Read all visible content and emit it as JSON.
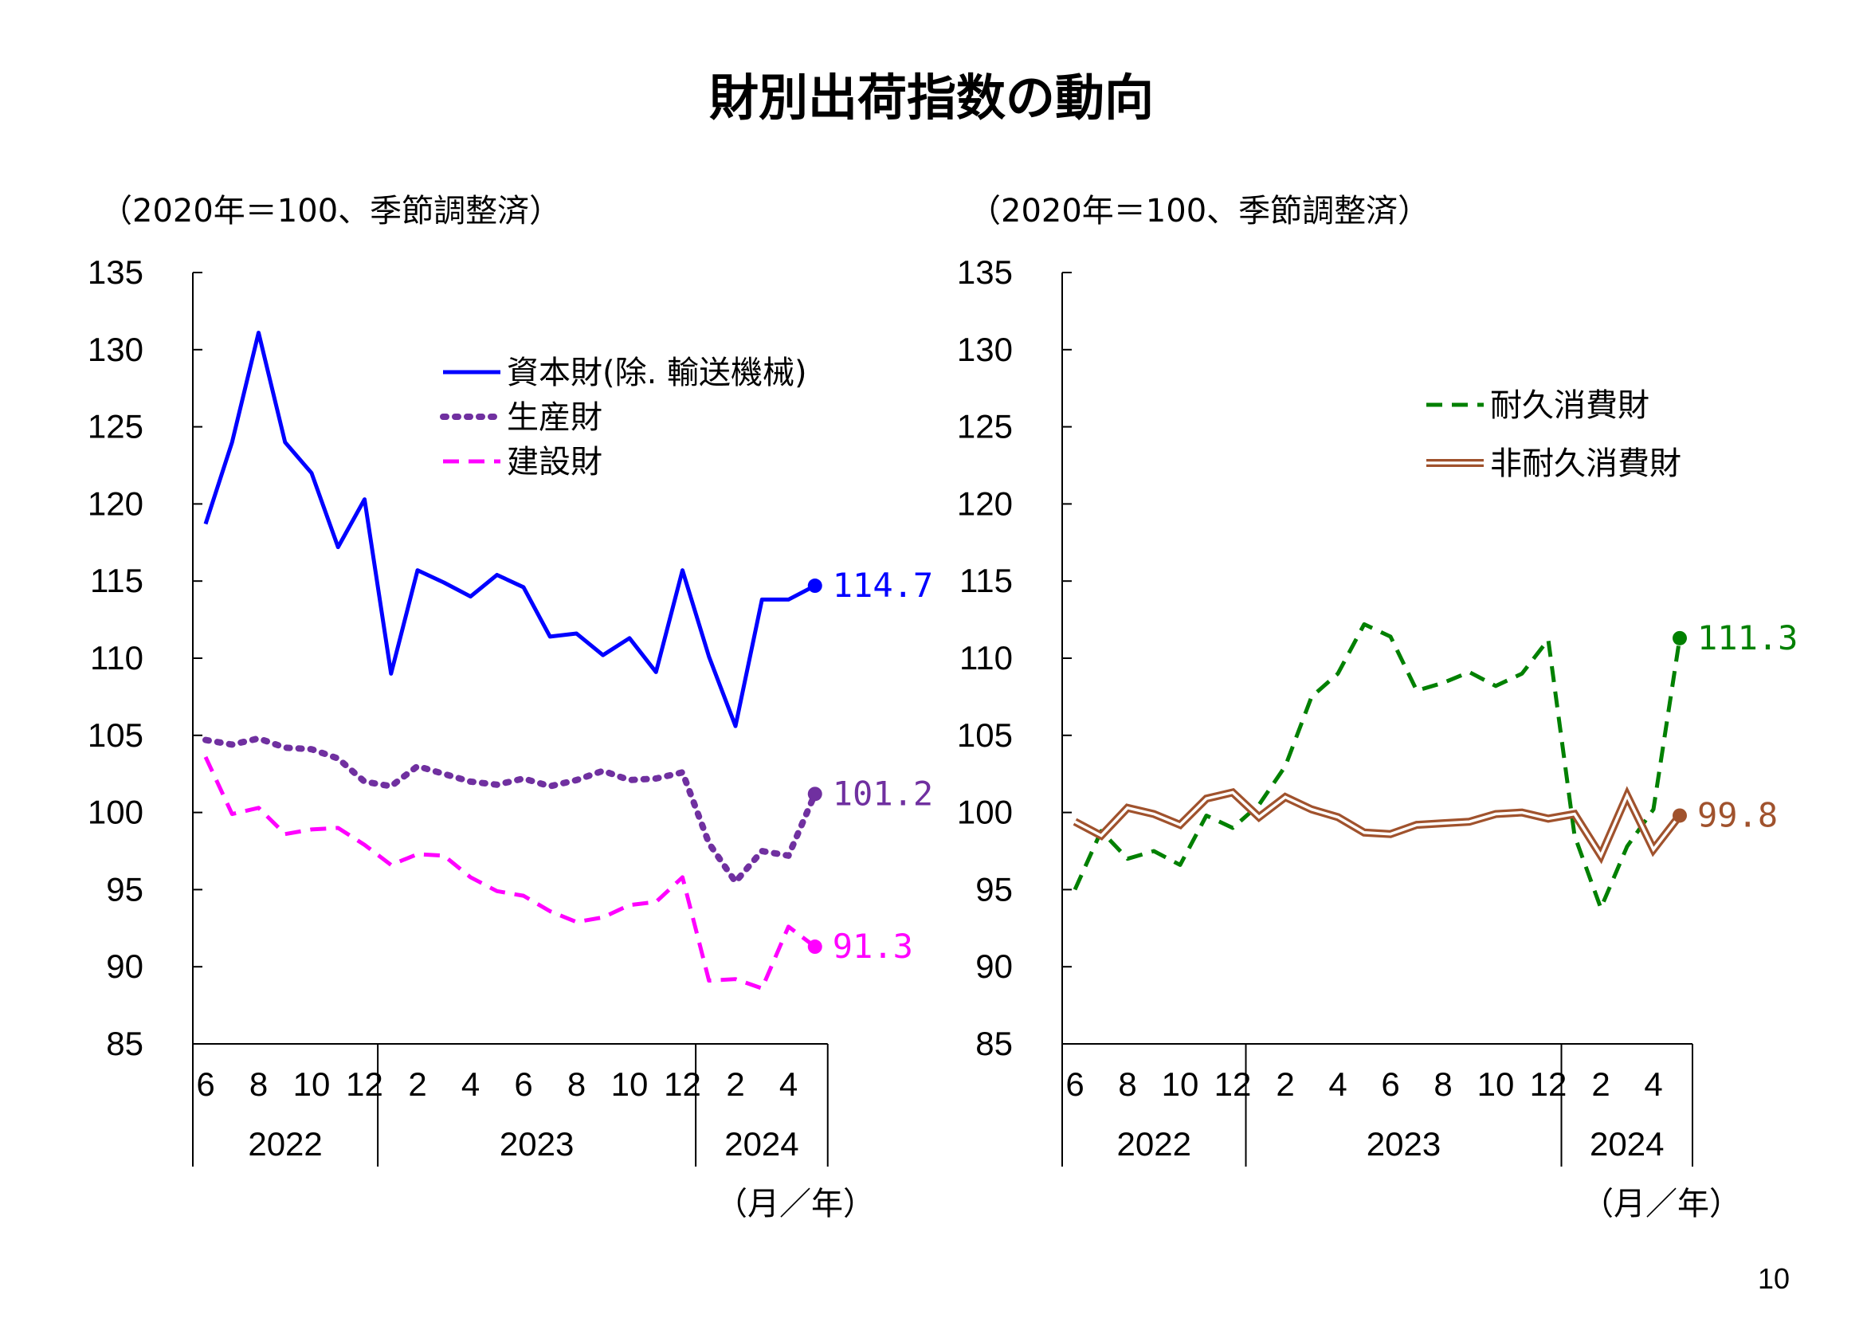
{
  "page": {
    "title": "財別出荷指数の動向",
    "page_number": "10"
  },
  "colors": {
    "capital": "#0000ff",
    "producer": "#7030a0",
    "construction": "#ff00ff",
    "durable": "#008000",
    "nondurable": "#a0522d"
  },
  "chart_data": [
    {
      "type": "line",
      "unit_note": "（2020年＝100、季節調整済）",
      "axis_unit": "（月／年）",
      "ylim": [
        85,
        135
      ],
      "y_ticks": [
        "85",
        "90",
        "95",
        "100",
        "105",
        "110",
        "115",
        "120",
        "125",
        "130",
        "135"
      ],
      "x_month_ticks": [
        "6",
        "8",
        "10",
        "12",
        "2",
        "4",
        "6",
        "8",
        "10",
        "12",
        "2",
        "4"
      ],
      "x_year_labels": [
        "2022",
        "2023",
        "2024"
      ],
      "x": [
        "2022-06",
        "2022-07",
        "2022-08",
        "2022-09",
        "2022-10",
        "2022-11",
        "2022-12",
        "2023-01",
        "2023-02",
        "2023-03",
        "2023-04",
        "2023-05",
        "2023-06",
        "2023-07",
        "2023-08",
        "2023-09",
        "2023-10",
        "2023-11",
        "2023-12",
        "2024-01",
        "2024-02",
        "2024-03",
        "2024-04",
        "2024-05"
      ],
      "series": [
        {
          "name": "資本財(除. 輸送機械)",
          "color_key": "capital",
          "style": "solid",
          "values": [
            118.7,
            124.0,
            131.1,
            124.0,
            122.0,
            117.2,
            120.3,
            109.0,
            115.7,
            114.9,
            114.0,
            115.4,
            114.6,
            111.4,
            111.6,
            110.2,
            111.3,
            109.1,
            115.7,
            110.1,
            105.6,
            113.8,
            113.8,
            114.7
          ],
          "end_label": "114.7"
        },
        {
          "name": "生産財",
          "color_key": "producer",
          "style": "dotted",
          "values": [
            104.7,
            104.4,
            104.8,
            104.2,
            104.1,
            103.5,
            102.0,
            101.7,
            103.0,
            102.5,
            102.0,
            101.8,
            102.2,
            101.7,
            102.1,
            102.7,
            102.1,
            102.2,
            102.6,
            98.0,
            95.5,
            97.5,
            97.2,
            101.2
          ],
          "end_label": "101.2"
        },
        {
          "name": "建設財",
          "color_key": "construction",
          "style": "dashed",
          "values": [
            103.6,
            99.9,
            100.3,
            98.6,
            98.9,
            99.0,
            97.9,
            96.6,
            97.3,
            97.2,
            95.8,
            94.9,
            94.6,
            93.6,
            92.9,
            93.2,
            94.0,
            94.2,
            95.8,
            89.1,
            89.2,
            88.6,
            92.6,
            91.3
          ],
          "end_label": "91.3"
        }
      ]
    },
    {
      "type": "line",
      "unit_note": "（2020年＝100、季節調整済）",
      "axis_unit": "（月／年）",
      "ylim": [
        85,
        135
      ],
      "y_ticks": [
        "85",
        "90",
        "95",
        "100",
        "105",
        "110",
        "115",
        "120",
        "125",
        "130",
        "135"
      ],
      "x_month_ticks": [
        "6",
        "8",
        "10",
        "12",
        "2",
        "4",
        "6",
        "8",
        "10",
        "12",
        "2",
        "4"
      ],
      "x_year_labels": [
        "2022",
        "2023",
        "2024"
      ],
      "x": [
        "2022-06",
        "2022-07",
        "2022-08",
        "2022-09",
        "2022-10",
        "2022-11",
        "2022-12",
        "2023-01",
        "2023-02",
        "2023-03",
        "2023-04",
        "2023-05",
        "2023-06",
        "2023-07",
        "2023-08",
        "2023-09",
        "2023-10",
        "2023-11",
        "2023-12",
        "2024-01",
        "2024-02",
        "2024-03",
        "2024-04",
        "2024-05"
      ],
      "series": [
        {
          "name": "耐久消費財",
          "color_key": "durable",
          "style": "dashed",
          "values": [
            95.0,
            98.8,
            97.0,
            97.5,
            96.6,
            99.8,
            99.0,
            100.5,
            103.0,
            107.5,
            109.0,
            112.2,
            111.4,
            107.9,
            108.4,
            109.1,
            108.2,
            109.0,
            111.2,
            98.5,
            93.8,
            97.8,
            100.2,
            111.3
          ],
          "end_label": "111.3"
        },
        {
          "name": "非耐久消費財",
          "color_key": "nondurable",
          "style": "double",
          "values": [
            99.4,
            98.5,
            100.3,
            99.9,
            99.2,
            100.9,
            101.3,
            99.7,
            101.0,
            100.2,
            99.7,
            98.7,
            98.6,
            99.2,
            99.3,
            99.4,
            99.9,
            100.0,
            99.6,
            99.9,
            97.2,
            101.1,
            97.6,
            99.8
          ],
          "end_label": "99.8"
        }
      ]
    }
  ]
}
